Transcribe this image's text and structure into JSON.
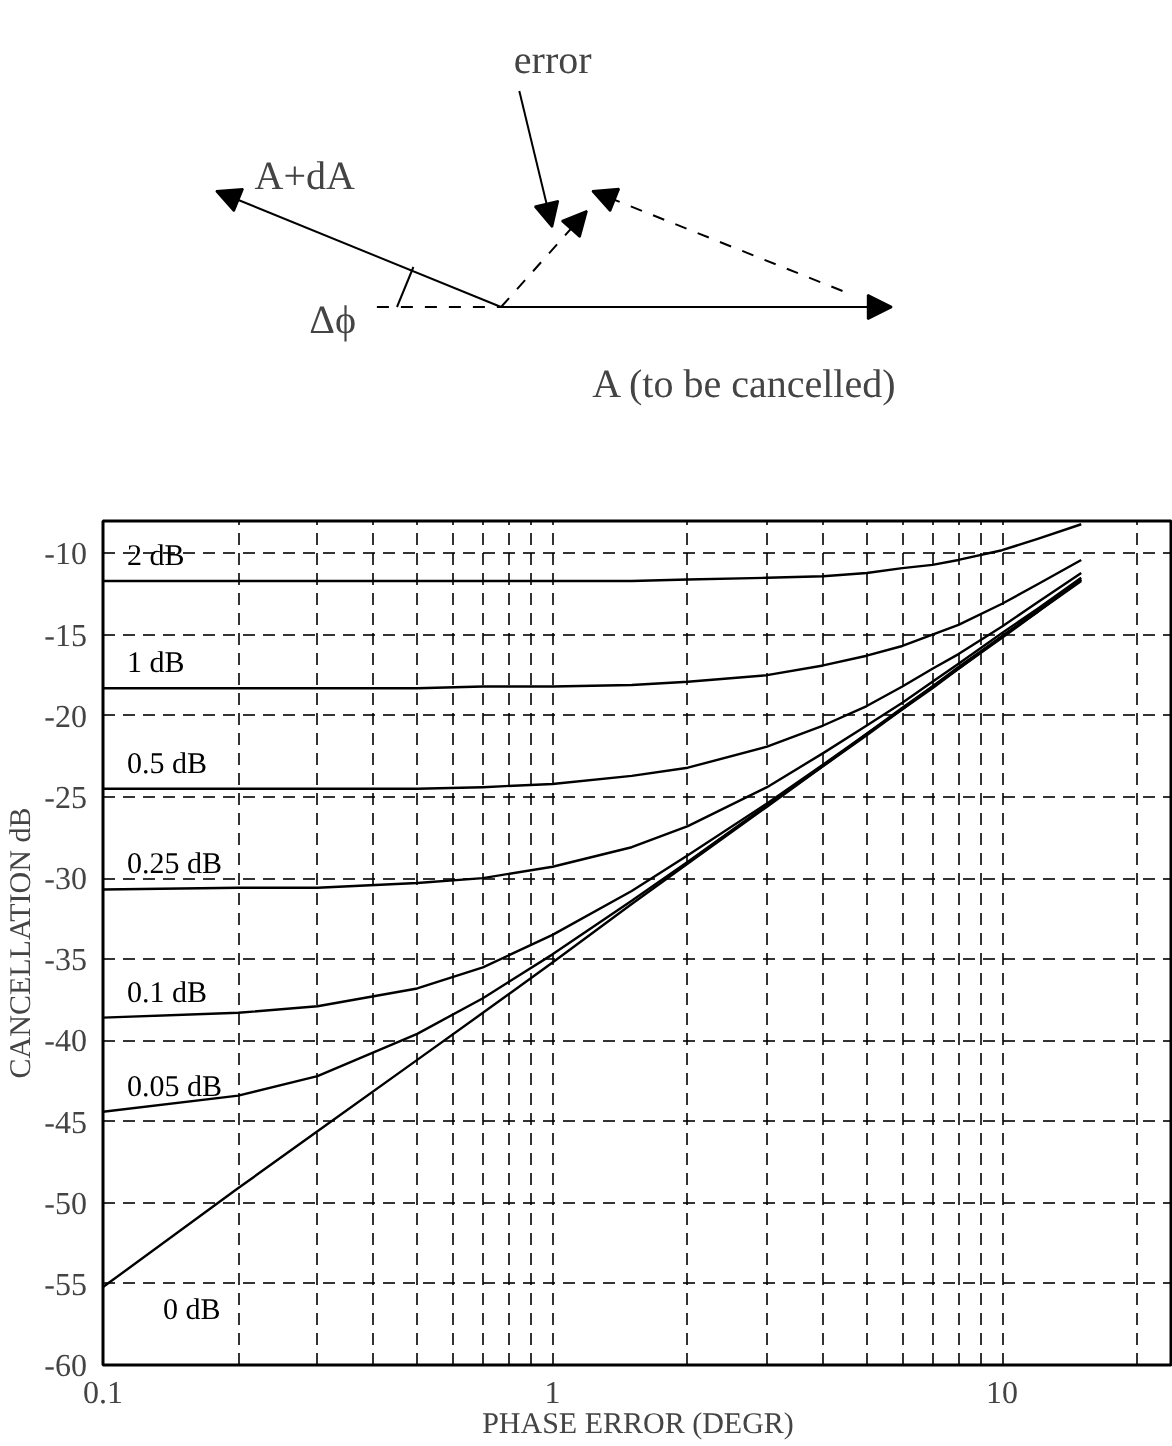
{
  "chart_data": {
    "type": "line",
    "xlabel": "PHASE ERROR (DEGR)",
    "ylabel": "CANCELLATION dB",
    "log": "x",
    "annotations": [
      "error",
      "A+dA",
      "Δϕ",
      "A (to be cancelled)"
    ],
    "x": [
      0.1,
      0.2,
      0.3,
      0.5,
      0.7,
      1,
      1.5,
      2,
      3,
      4,
      5,
      6,
      7,
      8,
      10,
      12,
      15
    ],
    "series": [
      {
        "name": "2 dB",
        "color": "#000000",
        "values": [
          -11.7,
          -11.7,
          -11.7,
          -11.7,
          -11.7,
          -11.7,
          -11.7,
          -11.6,
          -11.5,
          -11.4,
          -11.2,
          -10.9,
          -10.7,
          -10.4,
          -9.8,
          -9.1,
          -8.2
        ]
      },
      {
        "name": "1 dB",
        "color": "#000000",
        "values": [
          -18.3,
          -18.3,
          -18.3,
          -18.3,
          -18.2,
          -18.2,
          -18.1,
          -17.9,
          -17.5,
          -16.9,
          -16.3,
          -15.7,
          -15.0,
          -14.4,
          -13.1,
          -11.9,
          -10.4
        ]
      },
      {
        "name": "0.5 dB",
        "color": "#000000",
        "values": [
          -24.5,
          -24.5,
          -24.5,
          -24.5,
          -24.4,
          -24.2,
          -23.7,
          -23.2,
          -21.9,
          -20.6,
          -19.4,
          -18.2,
          -17.1,
          -16.2,
          -14.5,
          -13.0,
          -11.2
        ]
      },
      {
        "name": "0.25 dB",
        "color": "#000000",
        "values": [
          -30.7,
          -30.6,
          -30.6,
          -30.3,
          -30.0,
          -29.3,
          -28.1,
          -26.8,
          -24.4,
          -22.3,
          -20.6,
          -19.2,
          -17.9,
          -16.8,
          -14.9,
          -13.4,
          -11.5
        ]
      },
      {
        "name": "0.1 dB",
        "color": "#000000",
        "values": [
          -38.6,
          -38.3,
          -37.9,
          -36.8,
          -35.5,
          -33.5,
          -30.8,
          -28.6,
          -25.4,
          -23.0,
          -21.1,
          -19.5,
          -18.2,
          -17.0,
          -15.1,
          -13.5,
          -11.6
        ]
      },
      {
        "name": "0.05 dB",
        "color": "#000000",
        "values": [
          -44.4,
          -43.4,
          -42.2,
          -39.6,
          -37.4,
          -34.7,
          -31.4,
          -29.0,
          -25.5,
          -23.1,
          -21.1,
          -19.6,
          -18.2,
          -17.1,
          -15.1,
          -13.6,
          -11.6
        ]
      },
      {
        "name": "0 dB",
        "color": "#000000",
        "values": [
          -55.2,
          -49.1,
          -45.6,
          -41.2,
          -38.3,
          -35.2,
          -31.6,
          -29.1,
          -25.6,
          -23.1,
          -21.2,
          -19.6,
          -18.3,
          -17.1,
          -15.2,
          -13.6,
          -11.7
        ]
      }
    ],
    "xlim": [
      0.1,
      24
    ],
    "ylim": [
      -60,
      -8
    ],
    "xticks": [
      0.1,
      {
        "value": 0.2,
        "label": null
      },
      {
        "value": 0.3,
        "label": null
      },
      {
        "value": 0.4,
        "label": null
      },
      {
        "value": 0.5,
        "label": null
      },
      {
        "value": 0.6,
        "label": null
      },
      {
        "value": 0.7,
        "label": null
      },
      {
        "value": 0.8,
        "label": null
      },
      {
        "value": 0.9,
        "label": null
      },
      1,
      {
        "value": 2,
        "label": null
      },
      {
        "value": 3,
        "label": null
      },
      {
        "value": 4,
        "label": null
      },
      {
        "value": 5,
        "label": null
      },
      {
        "value": 6,
        "label": null
      },
      {
        "value": 7,
        "label": null
      },
      {
        "value": 8,
        "label": null
      },
      {
        "value": 9,
        "label": null
      },
      10,
      {
        "value": 20,
        "label": null
      }
    ],
    "yticks": [
      -60,
      -55,
      -50,
      -45,
      -40,
      -35,
      -30,
      -25,
      -20,
      -15,
      -10
    ],
    "grid": true,
    "marker": "none",
    "line_style": "solid"
  }
}
